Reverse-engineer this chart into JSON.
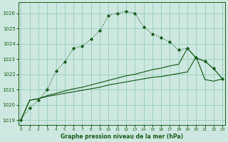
{
  "title": "Graphe pression niveau de la mer (hPa)",
  "bg_color": "#cde8e0",
  "grid_color": "#9ecfc4",
  "line_color": "#1a5c1a",
  "yticks": [
    1019,
    1020,
    1021,
    1022,
    1023,
    1024,
    1025,
    1026
  ],
  "xticks": [
    0,
    1,
    2,
    3,
    4,
    5,
    6,
    7,
    8,
    9,
    10,
    11,
    12,
    13,
    14,
    15,
    16,
    17,
    18,
    19,
    20,
    21,
    22,
    23
  ],
  "xlim": [
    -0.3,
    23.3
  ],
  "ylim": [
    1018.7,
    1026.7
  ],
  "series1_x": [
    0,
    1,
    2,
    3,
    4,
    5,
    6,
    7,
    8,
    9,
    10,
    11,
    12,
    13,
    14,
    15,
    16,
    17,
    18,
    19,
    20,
    21,
    22,
    23
  ],
  "series1_y": [
    1019.0,
    1019.8,
    1020.3,
    1021.0,
    1022.2,
    1022.8,
    1023.7,
    1023.85,
    1024.3,
    1024.85,
    1025.85,
    1026.0,
    1026.1,
    1026.0,
    1025.1,
    1024.65,
    1024.4,
    1024.1,
    1023.6,
    1023.7,
    1023.1,
    1022.85,
    1022.4,
    1021.7
  ],
  "series2_x": [
    0,
    1,
    2,
    3,
    4,
    5,
    6,
    7,
    8,
    9,
    10,
    11,
    12,
    13,
    14,
    15,
    16,
    17,
    18,
    19,
    20,
    21,
    22,
    23
  ],
  "series2_y": [
    1019.0,
    1020.3,
    1020.4,
    1020.6,
    1020.75,
    1020.9,
    1021.05,
    1021.15,
    1021.3,
    1021.45,
    1021.6,
    1021.75,
    1021.9,
    1022.0,
    1022.15,
    1022.3,
    1022.4,
    1022.55,
    1022.65,
    1023.7,
    1023.05,
    1022.85,
    1022.35,
    1021.7
  ],
  "series3_x": [
    0,
    1,
    2,
    3,
    4,
    5,
    6,
    7,
    8,
    9,
    10,
    11,
    12,
    13,
    14,
    15,
    16,
    17,
    18,
    19,
    20,
    21,
    22,
    23
  ],
  "series3_y": [
    1019.0,
    1020.3,
    1020.4,
    1020.55,
    1020.65,
    1020.75,
    1020.85,
    1020.95,
    1021.05,
    1021.15,
    1021.3,
    1021.4,
    1021.5,
    1021.6,
    1021.7,
    1021.8,
    1021.85,
    1021.95,
    1022.05,
    1022.15,
    1023.15,
    1021.65,
    1021.55,
    1021.7
  ]
}
